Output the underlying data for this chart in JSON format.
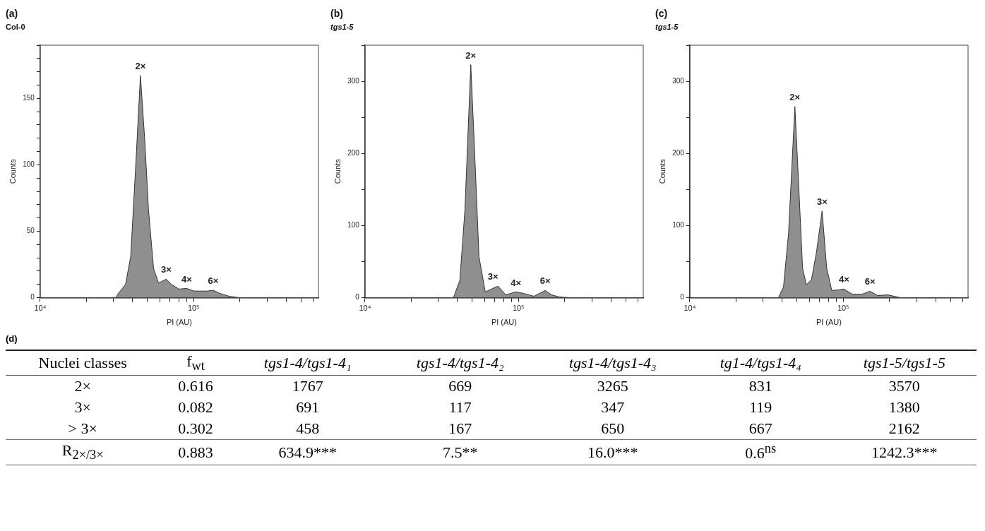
{
  "chart_data": [
    {
      "type": "area",
      "title": "(a)",
      "subtitle": "Col-0",
      "xlabel": "PI (AU)",
      "ylabel": "Counts",
      "log": "x",
      "xlim": [
        10000,
        650000
      ],
      "ylim": [
        0,
        190
      ],
      "xticks": [
        {
          "value": 10000,
          "label": "10⁴"
        },
        {
          "value": 20000,
          "label": null
        },
        {
          "value": 30000,
          "label": null
        },
        {
          "value": 40000,
          "label": null
        },
        {
          "value": 50000,
          "label": null
        },
        {
          "value": 60000,
          "label": null
        },
        {
          "value": 70000,
          "label": null
        },
        {
          "value": 80000,
          "label": null
        },
        {
          "value": 90000,
          "label": null
        },
        {
          "value": 100000,
          "label": "10⁵"
        },
        {
          "value": 200000,
          "label": null
        },
        {
          "value": 300000,
          "label": null
        },
        {
          "value": 400000,
          "label": null
        },
        {
          "value": 500000,
          "label": null
        },
        {
          "value": 600000,
          "label": null
        }
      ],
      "yticks": [
        0,
        {
          "value": 10,
          "label": null
        },
        {
          "value": 20,
          "label": null
        },
        {
          "value": 30,
          "label": null
        },
        {
          "value": 40,
          "label": null
        },
        50,
        {
          "value": 60,
          "label": null
        },
        {
          "value": 70,
          "label": null
        },
        {
          "value": 80,
          "label": null
        },
        {
          "value": 90,
          "label": null
        },
        100,
        {
          "value": 110,
          "label": null
        },
        {
          "value": 120,
          "label": null
        },
        {
          "value": 130,
          "label": null
        },
        {
          "value": 140,
          "label": null
        },
        150,
        {
          "value": 160,
          "label": null
        },
        {
          "value": 170,
          "label": null
        },
        {
          "value": 180,
          "label": null
        },
        {
          "value": 190,
          "label": null
        }
      ],
      "x": [
        10000,
        31000,
        32700,
        36000,
        38900,
        42000,
        45000,
        48000,
        50800,
        54800,
        59100,
        66300,
        71600,
        80200,
        90000,
        100700,
        122000,
        134000,
        147500,
        171800,
        200000,
        650000
      ],
      "series": [
        {
          "color": "#8f8f8f",
          "values": [
            0,
            0,
            4,
            10,
            31,
            101,
            167,
            119,
            66,
            22,
            11,
            14,
            10,
            6.5,
            7,
            5,
            5,
            5.6,
            3.3,
            1,
            0,
            0
          ]
        }
      ],
      "annotations": [
        {
          "text": "2×",
          "x": 45000,
          "y": 167
        },
        {
          "text": "3×",
          "x": 66300,
          "y": 14
        },
        {
          "text": "4×",
          "x": 90000,
          "y": 7
        },
        {
          "text": "6×",
          "x": 134000,
          "y": 5.6
        }
      ]
    },
    {
      "type": "area",
      "title": "(b)",
      "subtitle": "tgs1-5",
      "xlabel": "PI (AU)",
      "ylabel": "Counts",
      "log": "x",
      "xlim": [
        10000,
        650000
      ],
      "ylim": [
        0,
        350
      ],
      "xticks": [
        {
          "value": 10000,
          "label": "10⁴"
        },
        {
          "value": 20000,
          "label": null
        },
        {
          "value": 30000,
          "label": null
        },
        {
          "value": 40000,
          "label": null
        },
        {
          "value": 50000,
          "label": null
        },
        {
          "value": 60000,
          "label": null
        },
        {
          "value": 70000,
          "label": null
        },
        {
          "value": 80000,
          "label": null
        },
        {
          "value": 90000,
          "label": null
        },
        {
          "value": 100000,
          "label": "10⁵"
        },
        {
          "value": 200000,
          "label": null
        },
        {
          "value": 300000,
          "label": null
        },
        {
          "value": 400000,
          "label": null
        },
        {
          "value": 500000,
          "label": null
        },
        {
          "value": 600000,
          "label": null
        }
      ],
      "yticks": [
        0,
        {
          "value": 50,
          "label": null
        },
        100,
        {
          "value": 150,
          "label": null
        },
        200,
        {
          "value": 250,
          "label": null
        },
        300,
        {
          "value": 350,
          "label": null
        }
      ],
      "x": [
        10000,
        37700,
        41500,
        44800,
        48900,
        52200,
        55300,
        60800,
        68200,
        73600,
        82600,
        96200,
        108000,
        126000,
        149400,
        164400,
        184500,
        223000,
        650000
      ],
      "series": [
        {
          "color": "#8f8f8f",
          "values": [
            0,
            0,
            24,
            122,
            323,
            186,
            57,
            8,
            13,
            16,
            4,
            8,
            6,
            2,
            10,
            4,
            1,
            0,
            0
          ]
        }
      ],
      "annotations": [
        {
          "text": "2×",
          "x": 48900,
          "y": 323
        },
        {
          "text": "3×",
          "x": 68200,
          "y": 16
        },
        {
          "text": "4×",
          "x": 96200,
          "y": 8
        },
        {
          "text": "6×",
          "x": 149400,
          "y": 10
        }
      ]
    },
    {
      "type": "area",
      "title": "(c)",
      "subtitle": "tgs1-5",
      "xlabel": "PI (AU)",
      "ylabel": "Counts",
      "log": "x",
      "xlim": [
        10000,
        650000
      ],
      "ylim": [
        0,
        350
      ],
      "xticks": [
        {
          "value": 10000,
          "label": "10⁴"
        },
        {
          "value": 20000,
          "label": null
        },
        {
          "value": 30000,
          "label": null
        },
        {
          "value": 40000,
          "label": null
        },
        {
          "value": 50000,
          "label": null
        },
        {
          "value": 60000,
          "label": null
        },
        {
          "value": 70000,
          "label": null
        },
        {
          "value": 80000,
          "label": null
        },
        {
          "value": 90000,
          "label": null
        },
        {
          "value": 100000,
          "label": "10⁵"
        },
        {
          "value": 200000,
          "label": null
        },
        {
          "value": 300000,
          "label": null
        },
        {
          "value": 400000,
          "label": null
        },
        {
          "value": 500000,
          "label": null
        },
        {
          "value": 600000,
          "label": null
        }
      ],
      "yticks": [
        0,
        {
          "value": 50,
          "label": null
        },
        100,
        {
          "value": 150,
          "label": null
        },
        200,
        {
          "value": 250,
          "label": null
        },
        300,
        {
          "value": 350,
          "label": null
        }
      ],
      "x": [
        10000,
        37800,
        40800,
        44000,
        48400,
        51300,
        54300,
        57500,
        62100,
        67000,
        72800,
        78000,
        84200,
        94400,
        101100,
        114300,
        133100,
        149300,
        167500,
        195000,
        236000,
        650000
      ],
      "series": [
        {
          "color": "#8f8f8f",
          "values": [
            0,
            0,
            15,
            89,
            265,
            154,
            41,
            18,
            25,
            64,
            120,
            41,
            10,
            11,
            12,
            5,
            5,
            9,
            3,
            4,
            0,
            0
          ]
        }
      ],
      "annotations": [
        {
          "text": "2×",
          "x": 48400,
          "y": 265
        },
        {
          "text": "3×",
          "x": 72800,
          "y": 120
        },
        {
          "text": "4×",
          "x": 101100,
          "y": 12
        },
        {
          "text": "6×",
          "x": 149300,
          "y": 9
        }
      ]
    },
    {
      "type": "other",
      "title": "(d)",
      "ylabel": "Nuclei classes",
      "categories": [
        "f$_{wt}$",
        "tgs1-4/tgs1-4₁",
        "tgs1-4/tgs1-4₂",
        "tgs1-4/tgs1-4₃",
        "tg1-4/tgs1-4₄",
        "tgs1-5/tgs1-5"
      ],
      "y_categories": [
        "2×",
        "3×",
        "> 3×",
        "R$_{2×/3×}$"
      ],
      "cell_labels": [
        [
          "0.616",
          "1767",
          "669",
          "3265",
          "831",
          "3570"
        ],
        [
          "0.082",
          "691",
          "117",
          "347",
          "119",
          "1380"
        ],
        [
          "0.302",
          "458",
          "167",
          "650",
          "667",
          "2162"
        ],
        [
          "0.883",
          "634.9***",
          "7.5**",
          "16.0***",
          "0.6$^{ns}$",
          "1242.3***"
        ]
      ]
    }
  ]
}
